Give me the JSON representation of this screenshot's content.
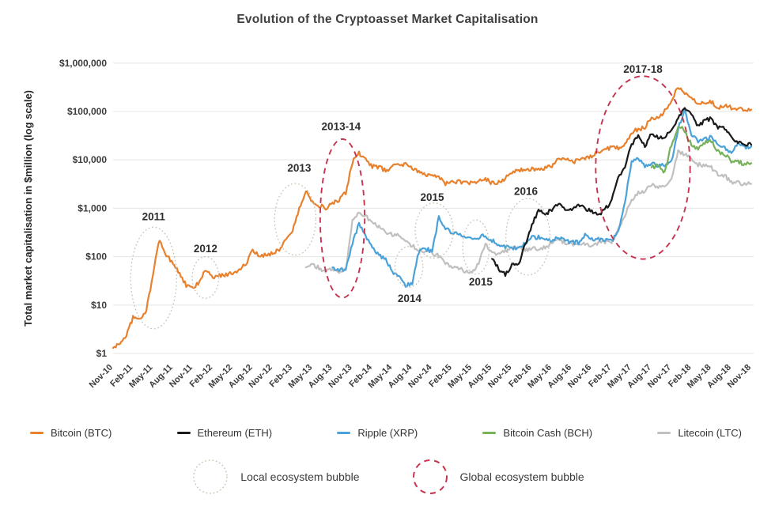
{
  "title": "Evolution of the Cryptoasset Market Capitalisation",
  "y_axis_title": "Total market capitalisation in $million (log scale)",
  "legend": {
    "series": [
      {
        "label": "Bitcoin (BTC)",
        "color": "#e8812d"
      },
      {
        "label": "Ethereum (ETH)",
        "color": "#1a1a1a"
      },
      {
        "label": "Ripple (XRP)",
        "color": "#4aa2d9"
      },
      {
        "label": "Bitcoin Cash (BCH)",
        "color": "#77b25a"
      },
      {
        "label": "Litecoin (LTC)",
        "color": "#c0c0c0"
      }
    ],
    "bubbles": [
      {
        "label": "Local ecosystem bubble",
        "type": "local",
        "color": "#c4bead"
      },
      {
        "label": "Global ecosystem bubble",
        "type": "global",
        "color": "#c5334e"
      }
    ]
  },
  "chart_data": {
    "type": "line",
    "title": "Evolution of the Cryptoasset Market Capitalisation",
    "ylabel": "Total market capitalisation in $million (log scale)",
    "y_axis": {
      "scale": "log",
      "range_musd": [
        1,
        1000000
      ],
      "grid": true,
      "ticks": [
        {
          "value": 1,
          "label": "$1"
        },
        {
          "value": 10,
          "label": "$10"
        },
        {
          "value": 100,
          "label": "$100"
        },
        {
          "value": 1000,
          "label": "$1,000"
        },
        {
          "value": 10000,
          "label": "$10,000"
        },
        {
          "value": 100000,
          "label": "$100,000"
        },
        {
          "value": 1000000,
          "label": "$1,000,000"
        }
      ]
    },
    "x_axis": {
      "unit": "month",
      "start": "Nov-10",
      "end": "Nov-18",
      "months_per_tick": 3,
      "tick_labels": [
        "Nov-10",
        "Feb-11",
        "May-11",
        "Aug-11",
        "Nov-11",
        "Feb-12",
        "May-12",
        "Aug-12",
        "Nov-12",
        "Feb-13",
        "May-13",
        "Aug-13",
        "Nov-13",
        "Feb-14",
        "May-14",
        "Aug-14",
        "Nov-14",
        "Feb-15",
        "May-15",
        "Aug-15",
        "Nov-15",
        "Feb-16",
        "May-16",
        "Aug-16",
        "Nov-16",
        "Feb-17",
        "May-17",
        "Aug-17",
        "Nov-17",
        "Feb-18",
        "May-18",
        "Aug-18",
        "Nov-18"
      ]
    },
    "series": [
      {
        "name": "Bitcoin (BTC)",
        "color": "#e8812d",
        "start_month": 0,
        "monthly_market_cap_musd": [
          1.3,
          1.6,
          2.4,
          5.5,
          5.0,
          7.5,
          45,
          230,
          105,
          75,
          45,
          25,
          22,
          30,
          55,
          36,
          40,
          43,
          46,
          55,
          70,
          135,
          100,
          110,
          120,
          140,
          230,
          350,
          950,
          2300,
          1350,
          1150,
          1000,
          1250,
          1450,
          2100,
          9000,
          13800,
          9800,
          7400,
          7200,
          5900,
          7300,
          8300,
          8000,
          6700,
          5600,
          4900,
          5200,
          4500,
          3200,
          3500,
          3600,
          3300,
          3300,
          3600,
          4100,
          3300,
          3400,
          4200,
          5400,
          6400,
          5700,
          6600,
          6300,
          6900,
          7200,
          10500,
          10300,
          9100,
          9700,
          11000,
          11900,
          14900,
          15600,
          19000,
          17500,
          21500,
          37000,
          43000,
          46000,
          78000,
          70000,
          105000,
          175000,
          320000,
          245000,
          185000,
          150000,
          158000,
          160000,
          112000,
          135000,
          120000,
          115000,
          112000,
          110000
        ]
      },
      {
        "name": "Ethereum (ETH)",
        "color": "#1a1a1a",
        "start_month": 57,
        "monthly_market_cap_musd": [
          90,
          55,
          42,
          68,
          65,
          180,
          450,
          900,
          720,
          950,
          1250,
          1000,
          950,
          1100,
          1000,
          860,
          700,
          950,
          1400,
          4500,
          7300,
          21000,
          34000,
          19500,
          35000,
          28000,
          29000,
          45000,
          72000,
          115000,
          85000,
          50000,
          66000,
          70000,
          46000,
          45000,
          28000,
          23000,
          21000,
          20500
        ]
      },
      {
        "name": "Ripple (XRP)",
        "color": "#4aa2d9",
        "start_month": 33,
        "monthly_market_cap_musd": [
          60,
          52,
          58,
          180,
          490,
          260,
          150,
          110,
          85,
          50,
          40,
          26,
          28,
          130,
          145,
          130,
          650,
          380,
          320,
          280,
          250,
          230,
          240,
          280,
          215,
          180,
          160,
          145,
          150,
          190,
          245,
          250,
          230,
          215,
          245,
          215,
          200,
          195,
          290,
          235,
          230,
          220,
          210,
          340,
          1300,
          9500,
          11000,
          7500,
          8500,
          7800,
          8000,
          9000,
          45000,
          105000,
          35000,
          25000,
          27000,
          30000,
          20000,
          18000,
          13500,
          21000,
          18500,
          19000
        ]
      },
      {
        "name": "Bitcoin Cash (BCH)",
        "color": "#77b25a",
        "start_month": 81,
        "monthly_market_cap_musd": [
          7000,
          7600,
          5600,
          21000,
          50000,
          40000,
          20000,
          17000,
          23000,
          25000,
          15000,
          13000,
          9500,
          9200,
          8200,
          8600
        ]
      },
      {
        "name": "Litecoin (LTC)",
        "color": "#c0c0c0",
        "start_month": 29,
        "monthly_market_cap_musd": [
          60,
          70,
          58,
          50,
          55,
          50,
          52,
          550,
          850,
          680,
          520,
          420,
          330,
          290,
          280,
          210,
          165,
          145,
          125,
          115,
          105,
          70,
          62,
          56,
          50,
          47,
          75,
          180,
          115,
          110,
          130,
          150,
          155,
          140,
          145,
          150,
          155,
          200,
          230,
          190,
          180,
          185,
          180,
          175,
          190,
          205,
          195,
          380,
          700,
          1500,
          2100,
          2300,
          3100,
          2800,
          3000,
          4000,
          15000,
          12500,
          11000,
          8000,
          7600,
          7000,
          5000,
          4700,
          3500,
          3400,
          3100,
          3200
        ]
      }
    ],
    "annotations": [
      {
        "label": "2011",
        "type": "local",
        "center_month": 6.1,
        "center_log10": 1.56,
        "rx_months": 3.45,
        "ry_decades": 1.05,
        "label_month": 6.1,
        "label_log10": 2.82
      },
      {
        "label": "2012",
        "type": "local",
        "center_month": 13.9,
        "center_log10": 1.57,
        "rx_months": 2.0,
        "ry_decades": 0.43,
        "label_month": 13.9,
        "label_log10": 2.16
      },
      {
        "label": "2013",
        "type": "local",
        "center_month": 27.4,
        "center_log10": 2.77,
        "rx_months": 3.1,
        "ry_decades": 0.74,
        "label_month": 28.0,
        "label_log10": 3.82
      },
      {
        "label": "2013-14",
        "type": "global",
        "center_month": 34.5,
        "center_log10": 2.79,
        "rx_months": 3.35,
        "ry_decades": 1.64,
        "label_month": 34.3,
        "label_log10": 4.68
      },
      {
        "label": "2014",
        "type": "local",
        "center_month": 44.5,
        "center_log10": 1.79,
        "rx_months": 2.1,
        "ry_decades": 0.42,
        "label_month": 44.6,
        "label_log10": 1.13
      },
      {
        "label": "2015",
        "type": "local",
        "center_month": 48.3,
        "center_log10": 2.54,
        "rx_months": 2.85,
        "ry_decades": 0.57,
        "label_month": 48.0,
        "label_log10": 3.22
      },
      {
        "label": "2015",
        "type": "local",
        "center_month": 54.6,
        "center_log10": 2.2,
        "rx_months": 2.0,
        "ry_decades": 0.56,
        "label_month": 55.3,
        "label_log10": 1.47
      },
      {
        "label": "2016",
        "type": "local",
        "center_month": 62.4,
        "center_log10": 2.41,
        "rx_months": 3.3,
        "ry_decades": 0.79,
        "label_month": 62.1,
        "label_log10": 3.34
      },
      {
        "label": "2017-18",
        "type": "global",
        "center_month": 79.7,
        "center_log10": 3.84,
        "rx_months": 7.1,
        "ry_decades": 1.89,
        "label_month": 79.7,
        "label_log10": 5.87
      }
    ],
    "legend_position": "bottom"
  }
}
